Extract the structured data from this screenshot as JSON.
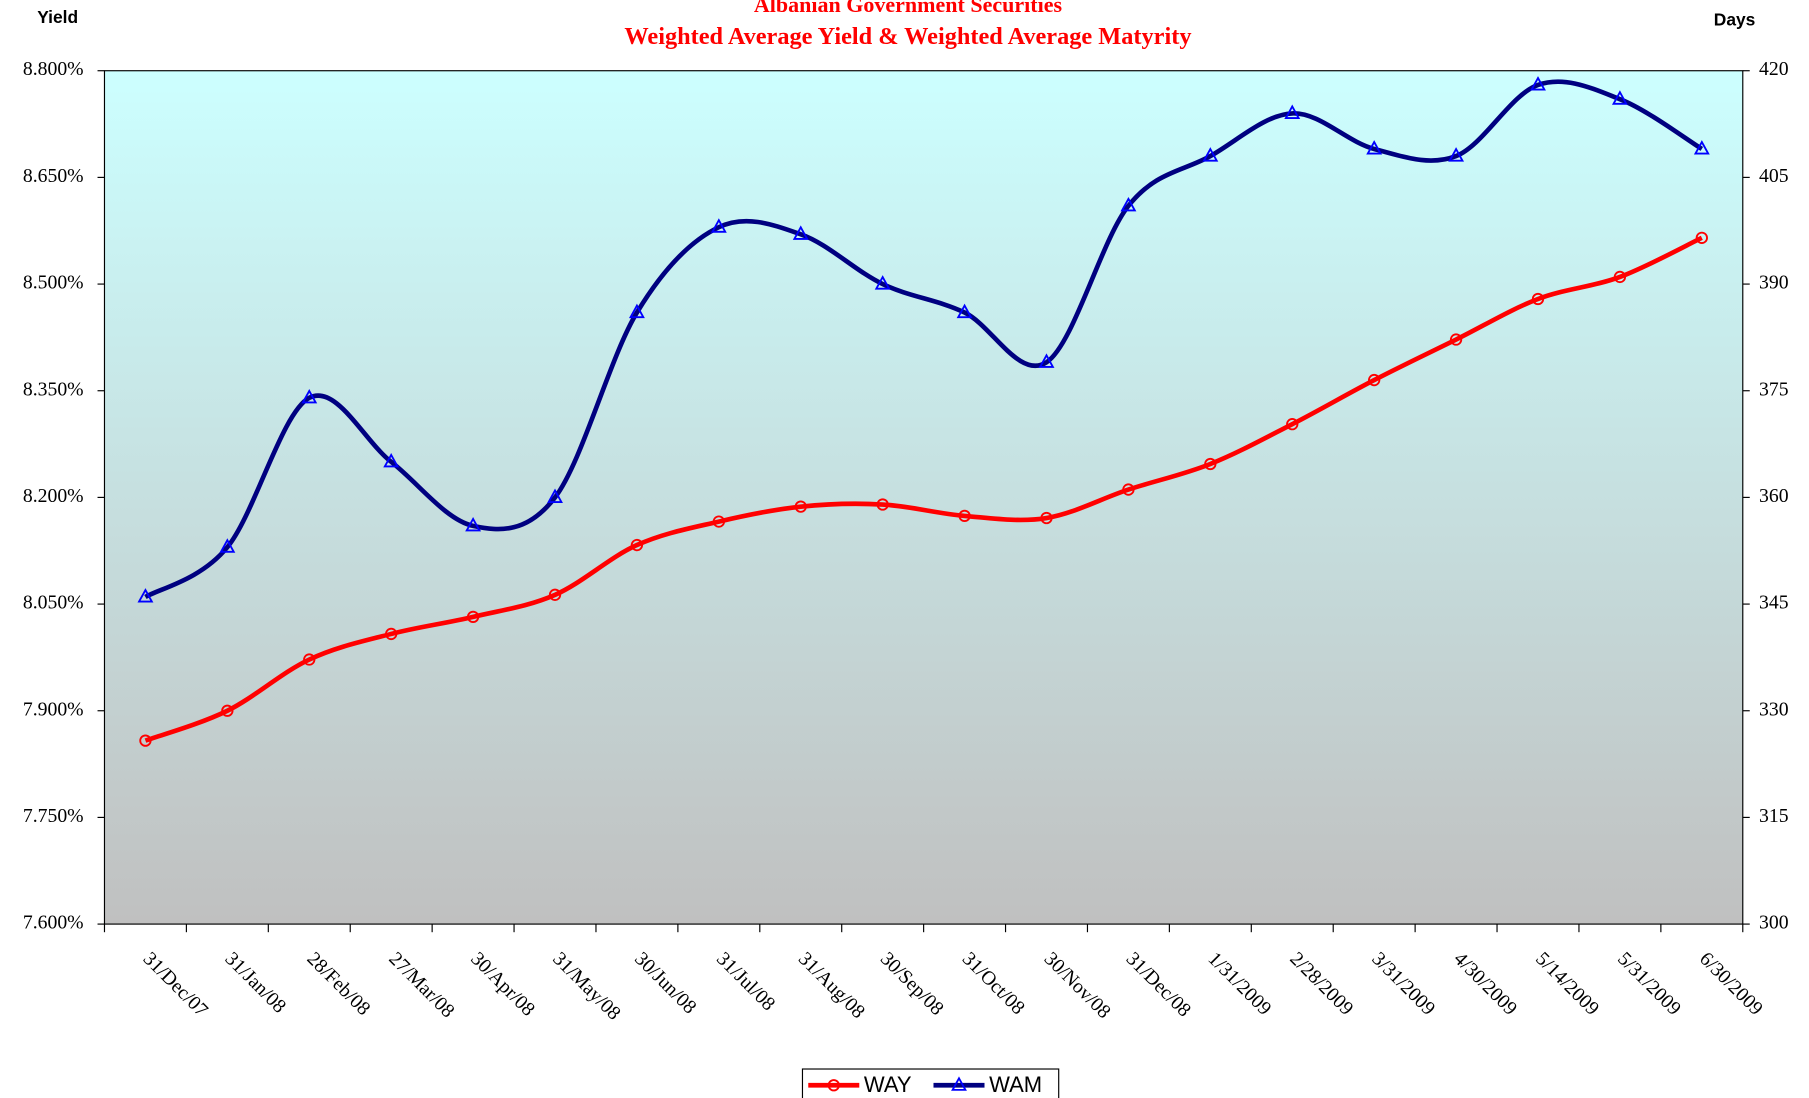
{
  "chart_data": {
    "type": "line",
    "title": "Albanian Government Securities",
    "subtitle": "Weighted Average Yield & Weighted Average Matyrity",
    "ylabel": "Yield",
    "y2label": "Days",
    "categories": [
      "31/Dec/07",
      "31/Jan/08",
      "28/Feb/08",
      "27/Mar/08",
      "30/Apr/08",
      "31/May/08",
      "30/Jun/08",
      "31/Jul/08",
      "31/Aug/08",
      "30/Sep/08",
      "31/Oct/08",
      "30/Nov/08",
      "31/Dec/08",
      "1/31/2009",
      "2/28/2009",
      "3/31/2009",
      "4/30/2009",
      "5/14/2009",
      "5/31/2009",
      "6/30/2009"
    ],
    "series": [
      {
        "name": "WAY",
        "color": "#ff0000",
        "marker": "circle",
        "values": [
          7.858,
          7.9,
          7.972,
          8.008,
          8.032,
          8.063,
          8.133,
          8.166,
          8.187,
          8.19,
          8.174,
          8.171,
          8.211,
          8.247,
          8.303,
          8.365,
          8.422,
          8.479,
          8.51,
          8.565
        ]
      },
      {
        "name": "WAM",
        "color": "#000080",
        "marker": "triangle",
        "axis": "y2",
        "values": [
          346,
          353,
          374,
          365,
          356,
          360,
          386,
          398,
          397,
          390,
          386,
          379,
          401,
          408,
          414,
          409,
          408,
          418,
          416,
          409
        ]
      }
    ],
    "ylim": [
      7.6,
      8.8
    ],
    "yticks": [
      {
        "value": 7.6,
        "label": "7.600%"
      },
      {
        "value": 7.75,
        "label": "7.750%"
      },
      {
        "value": 7.9,
        "label": "7.900%"
      },
      {
        "value": 8.05,
        "label": "8.050%"
      },
      {
        "value": 8.2,
        "label": "8.200%"
      },
      {
        "value": 8.35,
        "label": "8.350%"
      },
      {
        "value": 8.5,
        "label": "8.500%"
      },
      {
        "value": 8.65,
        "label": "8.650%"
      },
      {
        "value": 8.8,
        "label": "8.800%"
      }
    ],
    "y2lim": [
      300,
      420
    ],
    "y2ticks": [
      300,
      315,
      330,
      345,
      360,
      375,
      390,
      405,
      420
    ],
    "legend": "bottom"
  }
}
